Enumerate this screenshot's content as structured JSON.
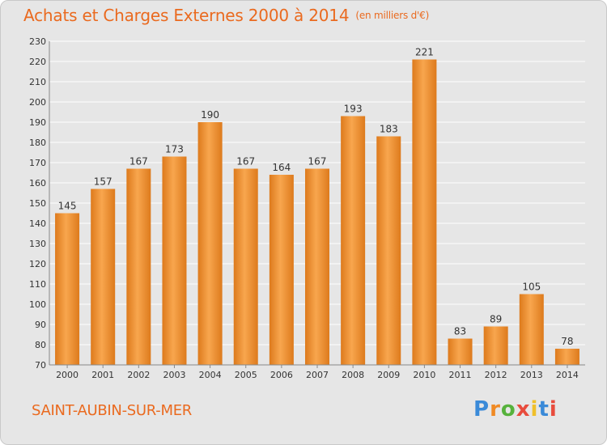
{
  "header": {
    "title": "Achats et Charges Externes 2000 à 2014",
    "unit": "(en milliers d'€)"
  },
  "footer": {
    "city": "SAINT-AUBIN-SUR-MER",
    "logo_text": "Proxiti",
    "logo_colors": [
      "#3a8ad8",
      "#f08a24",
      "#56b23c",
      "#e84c3d",
      "#f0c02a",
      "#3a8ad8",
      "#e84c3d"
    ]
  },
  "colors": {
    "title": "#ea6a1f",
    "bar_light": "#f8a64e",
    "bar_dark": "#dd7a1c",
    "grid": "#ffffff",
    "plot_bg": "#e6e6e6"
  },
  "chart_data": {
    "type": "bar",
    "title": "Achats et Charges Externes 2000 à 2014",
    "subtitle": "(en milliers d'€)",
    "categories": [
      "2000",
      "2001",
      "2002",
      "2003",
      "2004",
      "2005",
      "2006",
      "2007",
      "2008",
      "2009",
      "2010",
      "2011",
      "2012",
      "2013",
      "2014"
    ],
    "values": [
      145,
      157,
      167,
      173,
      190,
      167,
      164,
      167,
      193,
      183,
      221,
      83,
      89,
      105,
      78
    ],
    "ylim": [
      70,
      230
    ],
    "yticks": [
      70,
      80,
      90,
      100,
      110,
      120,
      130,
      140,
      150,
      160,
      170,
      180,
      190,
      200,
      210,
      220,
      230
    ],
    "grid": true,
    "legend": "none"
  }
}
